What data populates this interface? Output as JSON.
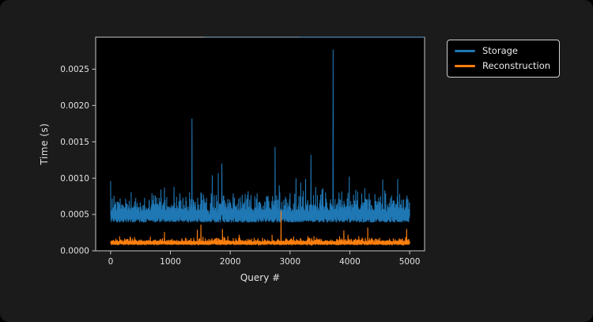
{
  "figure": {
    "background": "#1b1b1b",
    "outer_background": "#000000",
    "plot_background": "#000000",
    "spine_color": "#c8c8c8",
    "tick_color": "#c8c8c8",
    "text_color": "#e2e2e2"
  },
  "chart_data": {
    "type": "line",
    "title": "",
    "xlabel": "Query #",
    "ylabel": "Time (s)",
    "x_ticks": [
      0,
      1000,
      2000,
      3000,
      4000,
      5000
    ],
    "x_tick_labels": [
      "0",
      "1000",
      "2000",
      "3000",
      "4000",
      "5000"
    ],
    "y_ticks": [
      0,
      0.0005,
      0.001,
      0.0015,
      0.002,
      0.0025
    ],
    "y_tick_labels": [
      "0.0000",
      "0.0005",
      "0.0010",
      "0.0015",
      "0.0020",
      "0.0025"
    ],
    "xlim": [
      -250,
      5250
    ],
    "ylim": [
      0,
      0.00294
    ],
    "grid": false,
    "legend": {
      "entries": [
        "Storage",
        "Reconstruction"
      ],
      "position": "outside upper right"
    },
    "series": [
      {
        "name": "Storage",
        "color": "#1f77b4",
        "x_range": [
          0,
          5000
        ],
        "n_points": 5001,
        "baseline": {
          "min": 0.00039,
          "typical": 0.00057,
          "noise_max": 0.00088
        },
        "spur_probability": 0.3,
        "noise_seed": 1337,
        "spikes": [
          [
            0,
            0.00096
          ],
          [
            160,
            0.00072
          ],
          [
            420,
            0.00073
          ],
          [
            700,
            0.0007
          ],
          [
            900,
            0.00087
          ],
          [
            1060,
            0.00088
          ],
          [
            1160,
            0.00079
          ],
          [
            1360,
            0.00182
          ],
          [
            1520,
            0.00079
          ],
          [
            1700,
            0.00104
          ],
          [
            1800,
            0.00107
          ],
          [
            1860,
            0.0012
          ],
          [
            2050,
            0.00079
          ],
          [
            2200,
            0.00077
          ],
          [
            2300,
            0.00082
          ],
          [
            2450,
            0.00079
          ],
          [
            2620,
            0.00074
          ],
          [
            2750,
            0.00143
          ],
          [
            2820,
            0.0009
          ],
          [
            3000,
            0.00079
          ],
          [
            3100,
            0.001
          ],
          [
            3180,
            0.00094
          ],
          [
            3260,
            0.00099
          ],
          [
            3350,
            0.00132
          ],
          [
            3430,
            0.00088
          ],
          [
            3550,
            0.00086
          ],
          [
            3720,
            0.00277
          ],
          [
            3820,
            0.0008
          ],
          [
            3990,
            0.00102
          ],
          [
            4100,
            0.00084
          ],
          [
            4250,
            0.00086
          ],
          [
            4420,
            0.00078
          ],
          [
            4550,
            0.00098
          ],
          [
            4700,
            0.00076
          ],
          [
            4800,
            0.00099
          ],
          [
            4950,
            0.00073
          ]
        ]
      },
      {
        "name": "Reconstruction",
        "color": "#ff7f0e",
        "x_range": [
          0,
          5000
        ],
        "n_points": 5001,
        "baseline": {
          "min": 8e-05,
          "typical": 0.000135,
          "noise_max": 0.00021
        },
        "spur_probability": 0.25,
        "noise_seed": 2024,
        "spikes": [
          [
            900,
            0.00026
          ],
          [
            1250,
            0.00018
          ],
          [
            1450,
            0.00029
          ],
          [
            1510,
            0.00036
          ],
          [
            1870,
            0.0003
          ],
          [
            1960,
            0.0002
          ],
          [
            2150,
            0.00022
          ],
          [
            2400,
            0.00018
          ],
          [
            2700,
            0.00022
          ],
          [
            2850,
            0.00055
          ],
          [
            3060,
            0.00018
          ],
          [
            3400,
            0.0002
          ],
          [
            3900,
            0.00028
          ],
          [
            3970,
            0.00022
          ],
          [
            4150,
            0.0002
          ],
          [
            4300,
            0.00032
          ],
          [
            4500,
            0.00018
          ],
          [
            4950,
            0.0003
          ]
        ]
      }
    ],
    "top_spine_tint": {
      "color": "#1f77b4",
      "start_fraction": 0.33
    }
  }
}
